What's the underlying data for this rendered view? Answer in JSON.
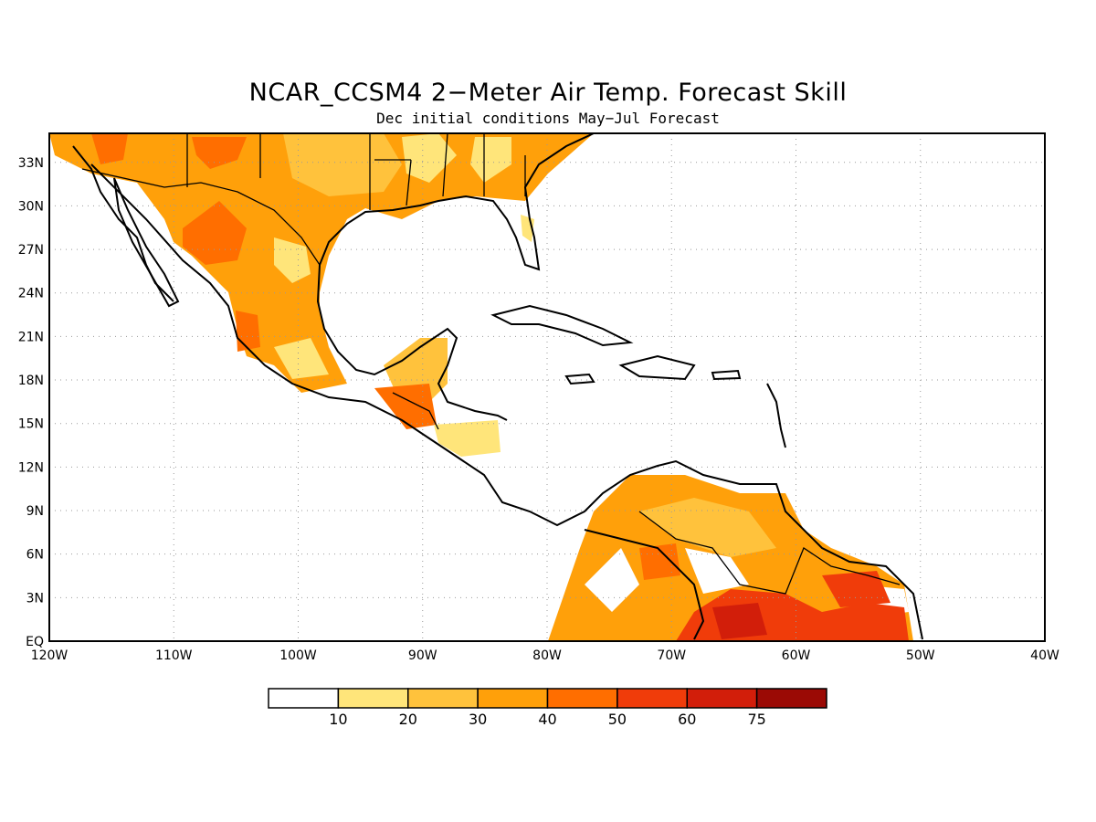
{
  "title": "NCAR_CCSM4 2−Meter Air Temp. Forecast Skill",
  "subtitle": "Dec initial conditions  May−Jul Forecast",
  "map": {
    "lat_labels": [
      "EQ",
      "3N",
      "6N",
      "9N",
      "12N",
      "15N",
      "18N",
      "21N",
      "24N",
      "27N",
      "30N",
      "33N"
    ],
    "lon_labels": [
      "120W",
      "110W",
      "100W",
      "90W",
      "80W",
      "70W",
      "60W",
      "50W",
      "40W"
    ],
    "lon_range": [
      -120,
      -40
    ],
    "lat_range": [
      0,
      35
    ],
    "grid": "dotted"
  },
  "colorbar": {
    "levels": [
      "10",
      "20",
      "30",
      "40",
      "50",
      "60",
      "75"
    ],
    "colors": [
      "#ffffff",
      "#ffe57a",
      "#ffc23c",
      "#ffa00a",
      "#ff6e00",
      "#f03c0a",
      "#d21e0a",
      "#9b0a05"
    ]
  }
}
